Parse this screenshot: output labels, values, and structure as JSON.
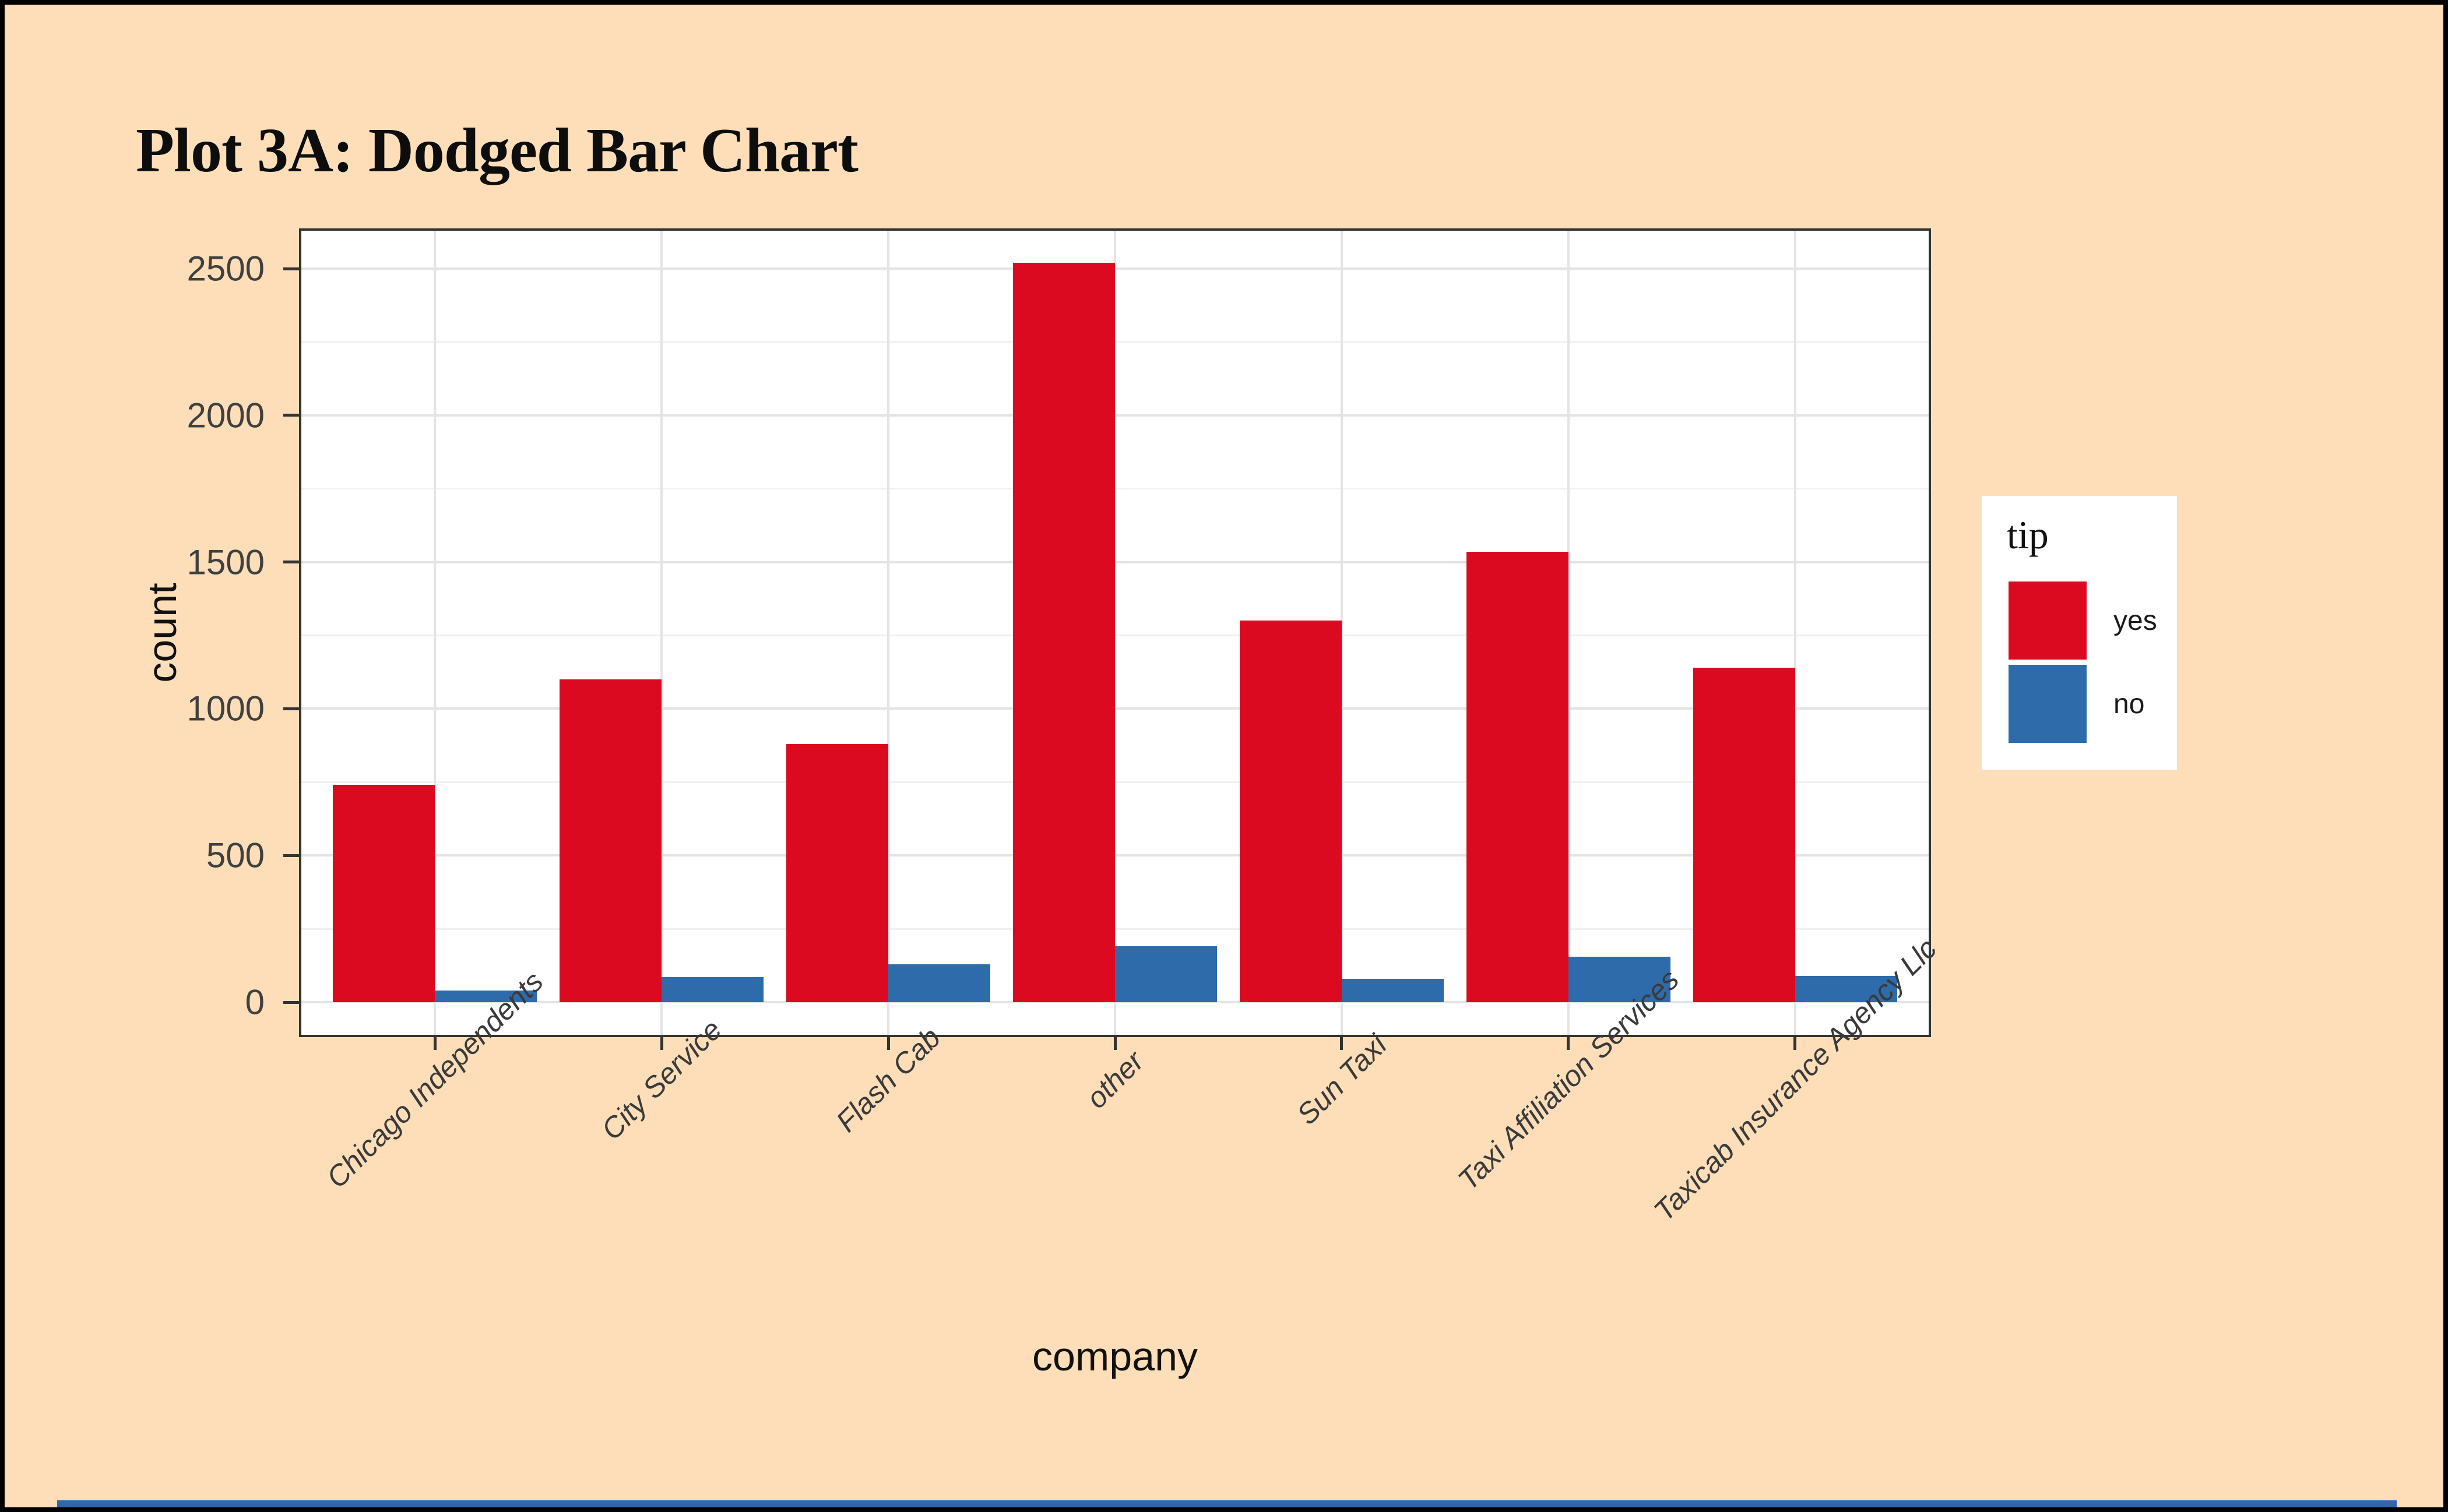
{
  "title": "Plot 3A: Dodged Bar Chart",
  "axes": {
    "x_title": "company",
    "y_title": "count"
  },
  "legend": {
    "title": "tip",
    "entries": [
      {
        "label": "yes",
        "color": "#DB0A21"
      },
      {
        "label": "no",
        "color": "#2E6BAB"
      }
    ]
  },
  "chart_data": {
    "type": "bar",
    "layout": "dodged",
    "title": "Plot 3A: Dodged Bar Chart",
    "xlabel": "company",
    "ylabel": "count",
    "categories": [
      "Chicago Independents",
      "City Service",
      "Flash Cab",
      "other",
      "Sun Taxi",
      "Taxi Affiliation Services",
      "Taxicab Insurance Agency Llc"
    ],
    "series": [
      {
        "name": "yes",
        "color": "#DB0A21",
        "values": [
          740,
          1100,
          880,
          2520,
          1300,
          1535,
          1140
        ]
      },
      {
        "name": "no",
        "color": "#2E6BAB",
        "values": [
          40,
          85,
          130,
          190,
          80,
          155,
          90
        ]
      }
    ],
    "y_major_ticks": [
      0,
      500,
      1000,
      1500,
      2000,
      2500
    ],
    "y_minor_ticks": [
      250,
      750,
      1250,
      1750,
      2250
    ],
    "ylim": [
      0,
      2637
    ],
    "grid": true,
    "legend_title": "tip",
    "legend_position": "right"
  },
  "colors": {
    "background": "#FDDEB8",
    "panel": "#FFFFFF",
    "grid_major": "#E4E4E4",
    "grid_minor": "#F0F0F0",
    "axis": "#333333",
    "tick_text": "#404040",
    "text": "#111111",
    "frame_border": "#000000"
  }
}
